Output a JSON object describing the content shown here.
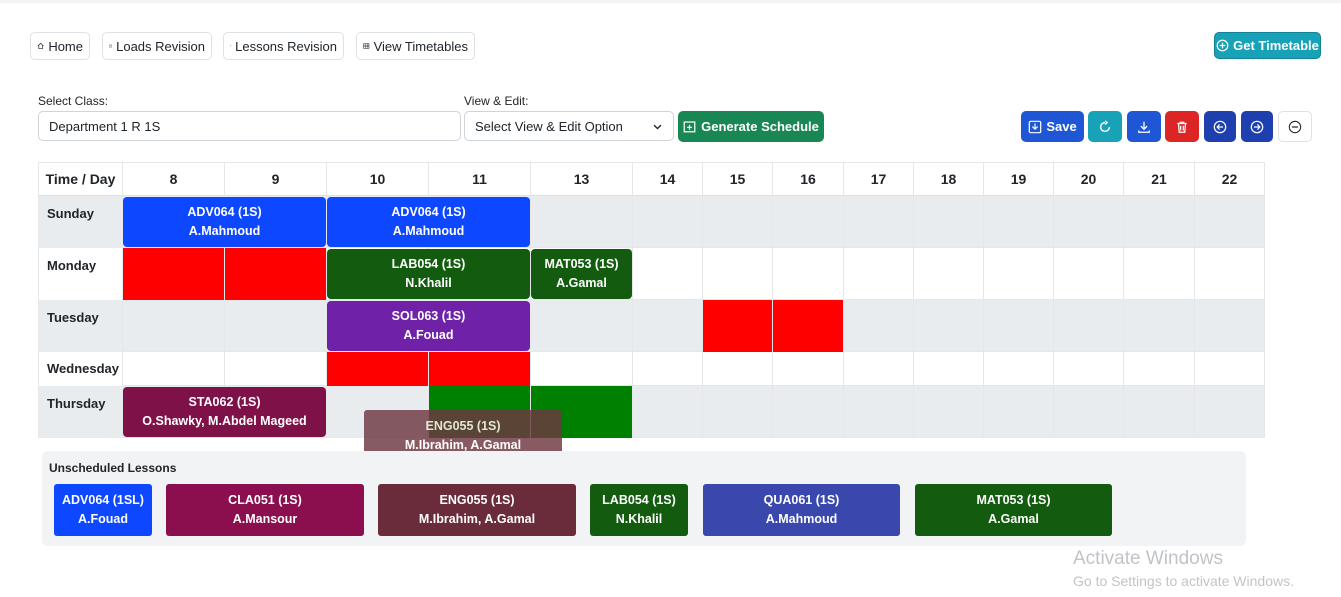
{
  "nav": {
    "home": "Home",
    "loads_revision": "Loads Revision",
    "lessons_revision": "Lessons Revision",
    "view_timetables": "View Timetables",
    "get_timetable": "Get Timetable"
  },
  "form": {
    "select_class_label": "Select Class:",
    "select_class_value": "Department 1 R 1S",
    "view_edit_label": "View & Edit:",
    "view_edit_value": "Select View & Edit Option",
    "generate_label": "Generate Schedule",
    "save_label": "Save"
  },
  "colors": {
    "blue": "#0d47ff",
    "red": "#ff0000",
    "dark_green": "#135c0f",
    "purple": "#6f22a8",
    "maroon": "#7d1148",
    "green": "#007d06",
    "crimson": "#8b0f4f",
    "wine": "#6a2c3a",
    "indigo": "#3a48ae",
    "save_blue": "#1e56d6",
    "teal": "#17a2b8",
    "delete_red": "#dc2626",
    "nav_blue": "#1e40af"
  },
  "grid": {
    "header": "Time / Day",
    "hours": [
      "8",
      "9",
      "10",
      "11",
      "13",
      "14",
      "15",
      "16",
      "17",
      "18",
      "19",
      "20",
      "21",
      "22"
    ],
    "days": [
      "Sunday",
      "Monday",
      "Tuesday",
      "Wednesday",
      "Thursday"
    ],
    "lessons": [
      {
        "day": 0,
        "start": 0,
        "span": 2,
        "code": "ADV064 (1S)",
        "teacher": "A.Mahmoud",
        "color": "#0d47ff"
      },
      {
        "day": 0,
        "start": 2,
        "span": 2,
        "code": "ADV064 (1S)",
        "teacher": "A.Mahmoud",
        "color": "#0d47ff"
      },
      {
        "day": 1,
        "start": 2,
        "span": 2,
        "code": "LAB054 (1S)",
        "teacher": "N.Khalil",
        "color": "#135c0f"
      },
      {
        "day": 1,
        "start": 4,
        "span": 1,
        "code": "MAT053 (1S)",
        "teacher": "A.Gamal",
        "color": "#135c0f"
      },
      {
        "day": 2,
        "start": 2,
        "span": 2,
        "code": "SOL063 (1S)",
        "teacher": "A.Fouad",
        "color": "#6f22a8"
      },
      {
        "day": 4,
        "start": 0,
        "span": 2,
        "code": "STA062 (1S)",
        "teacher": "O.Shawky, M.Abdel Mageed",
        "color": "#7d1148"
      }
    ],
    "blocked": [
      {
        "day": 1,
        "cell": 0,
        "color": "#ff0000"
      },
      {
        "day": 1,
        "cell": 1,
        "color": "#ff0000"
      },
      {
        "day": 2,
        "cell": 6,
        "color": "#ff0000"
      },
      {
        "day": 2,
        "cell": 7,
        "color": "#ff0000"
      },
      {
        "day": 3,
        "cell": 2,
        "color": "#ff0000"
      },
      {
        "day": 3,
        "cell": 3,
        "color": "#ff0000"
      },
      {
        "day": 4,
        "cell": 3,
        "color": "#008000"
      },
      {
        "day": 4,
        "cell": 4,
        "color": "#008000"
      }
    ]
  },
  "drag": {
    "code": "ENG055 (1S)",
    "teacher": "M.Ibrahim, A.Gamal"
  },
  "unscheduled": {
    "title": "Unscheduled Lessons",
    "items": [
      {
        "code": "ADV064 (1SL)",
        "teacher": "A.Fouad",
        "color": "#0d47ff"
      },
      {
        "code": "CLA051 (1S)",
        "teacher": "A.Mansour",
        "color": "#8b0f4f"
      },
      {
        "code": "ENG055 (1S)",
        "teacher": "M.Ibrahim, A.Gamal",
        "color": "#6a2c3a"
      },
      {
        "code": "LAB054 (1S)",
        "teacher": "N.Khalil",
        "color": "#135c0f"
      },
      {
        "code": "QUA061 (1S)",
        "teacher": "A.Mahmoud",
        "color": "#3a48ae"
      },
      {
        "code": "MAT053 (1S)",
        "teacher": "A.Gamal",
        "color": "#135c0f"
      }
    ]
  },
  "watermark": {
    "line1": "Activate Windows",
    "line2": "Go to Settings to activate Windows."
  }
}
